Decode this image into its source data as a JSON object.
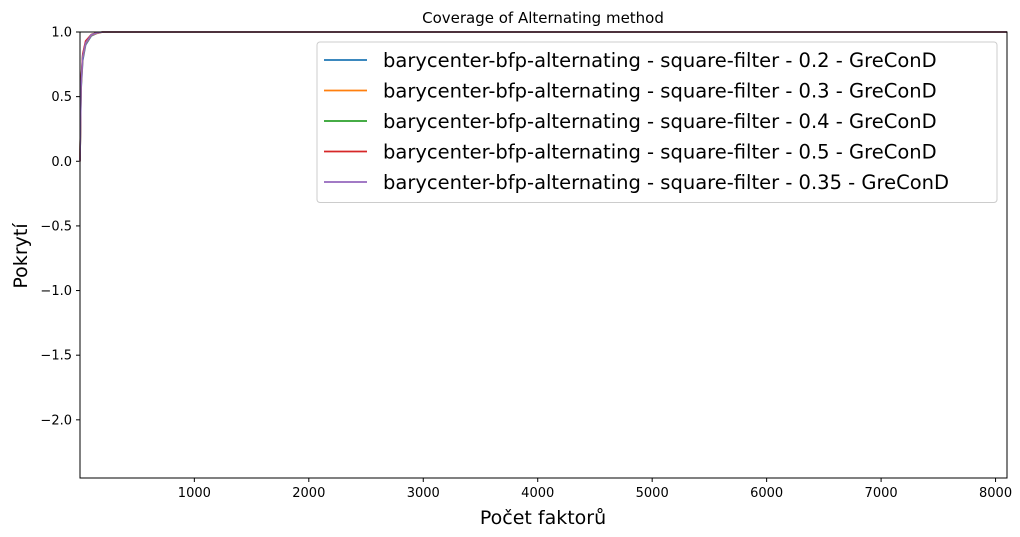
{
  "chart_data": {
    "type": "line",
    "title": "Coverage of Alternating method",
    "xlabel": "Počet faktorů",
    "ylabel": "Pokrytí",
    "xlim": [
      1,
      8100
    ],
    "ylim": [
      -2.45,
      1.0
    ],
    "xticks": [
      1000,
      2000,
      3000,
      4000,
      5000,
      6000,
      7000,
      8000
    ],
    "yticks": [
      1.0,
      0.5,
      0.0,
      -0.5,
      -1.0,
      -1.5,
      -2.0
    ],
    "ytick_labels": [
      "1.0",
      "0.5",
      "0.0",
      "−0.5",
      "−1.0",
      "−1.5",
      "−2.0"
    ],
    "grid": false,
    "legend_position": "top-right",
    "series": [
      {
        "name": "barycenter-bfp-alternating - square-filter - 0.2 - GreConD",
        "color": "#1f77b4",
        "x": [
          1,
          10,
          25,
          50,
          100,
          150,
          200,
          8100
        ],
        "y": [
          0.0,
          0.55,
          0.78,
          0.9,
          0.97,
          0.99,
          1.0,
          1.0
        ]
      },
      {
        "name": "barycenter-bfp-alternating - square-filter - 0.3 - GreConD",
        "color": "#ff7f0e",
        "x": [
          1,
          10,
          25,
          50,
          100,
          150,
          200,
          8100
        ],
        "y": [
          0.0,
          0.57,
          0.8,
          0.91,
          0.975,
          0.99,
          1.0,
          1.0
        ]
      },
      {
        "name": "barycenter-bfp-alternating - square-filter - 0.4 - GreConD",
        "color": "#2ca02c",
        "x": [
          1,
          10,
          25,
          50,
          100,
          150,
          200,
          8100
        ],
        "y": [
          0.0,
          0.6,
          0.82,
          0.92,
          0.98,
          0.995,
          1.0,
          1.0
        ]
      },
      {
        "name": "barycenter-bfp-alternating - square-filter - 0.5 - GreConD",
        "color": "#d62728",
        "x": [
          1,
          10,
          25,
          50,
          100,
          150,
          200,
          8100
        ],
        "y": [
          0.0,
          0.62,
          0.83,
          0.93,
          0.98,
          0.995,
          1.0,
          1.0
        ]
      },
      {
        "name": "barycenter-bfp-alternating - square-filter - 0.35 - GreConD",
        "color": "#9467bd",
        "x": [
          1,
          10,
          25,
          50,
          100,
          150,
          200,
          8100
        ],
        "y": [
          0.0,
          0.58,
          0.81,
          0.915,
          0.978,
          0.993,
          1.0,
          1.0
        ]
      }
    ]
  }
}
